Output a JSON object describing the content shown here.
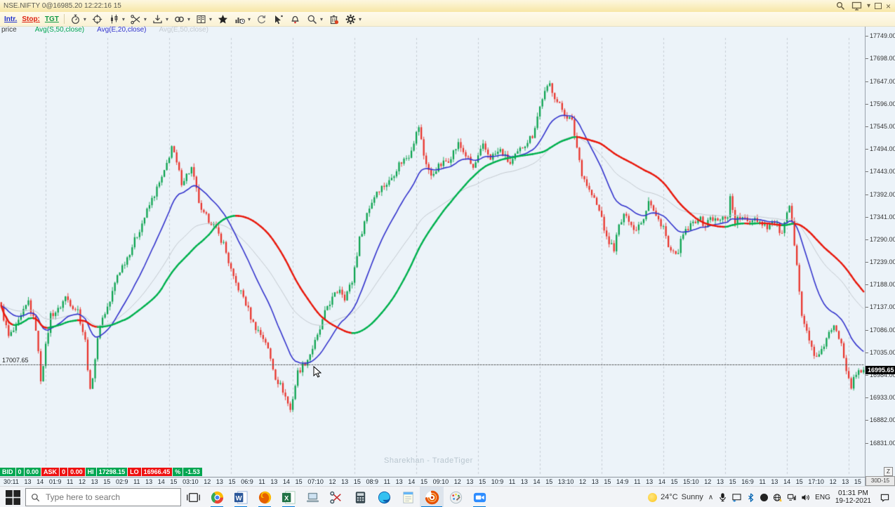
{
  "window": {
    "title": "NSE.NIFTY 0@16985.20 12:22:16 15"
  },
  "toolbar": {
    "text_buttons": [
      {
        "label": "Intr.",
        "color": "#2233cc"
      },
      {
        "label": "Stop:",
        "color": "#dd2211"
      },
      {
        "label": "TGT",
        "color": "#119944"
      }
    ],
    "icon_names": [
      "stopwatch-icon",
      "crosshair-icon",
      "candlestick-icon",
      "scissors-icon",
      "import-icon",
      "link-icon",
      "book-icon",
      "star-icon",
      "chart-clock-icon",
      "sync-icon",
      "pointer-icon",
      "bell-icon",
      "search-icon",
      "delete-icon",
      "settings-icon"
    ]
  },
  "legend": {
    "items": [
      {
        "label": "price",
        "color": "#3c3c3c"
      },
      {
        "label": "Avg(S,50,close)",
        "color": "#00a550"
      },
      {
        "label": "Avg(E,20,close)",
        "color": "#3333cc"
      },
      {
        "label": "Avg(E,50,close)",
        "color": "#c5cbd1"
      }
    ]
  },
  "chart_data": {
    "type": "candlestick",
    "instrument": "NSE.NIFTY",
    "timeframe_badge": "30D-15",
    "n_candles": 350,
    "y_axis": {
      "view_max": 17754,
      "view_min": 16756,
      "tick_step": 51,
      "ticks": [
        "17749.00",
        "17698.00",
        "17647.00",
        "17596.00",
        "17545.00",
        "17494.00",
        "17443.00",
        "17392.00",
        "17341.00",
        "17290.00",
        "17239.00",
        "17188.00",
        "17137.00",
        "17086.00",
        "17035.00",
        "16984.00",
        "16933.00",
        "16882.00",
        "16831.00"
      ]
    },
    "x_axis": {
      "labels": [
        "30:11",
        "13",
        "14",
        "01:9",
        "11",
        "12",
        "13",
        "15",
        "02:9",
        "11",
        "13",
        "14",
        "15",
        "03:10",
        "12",
        "13",
        "15",
        "06:9",
        "11",
        "13",
        "14",
        "15",
        "07:10",
        "12",
        "13",
        "15",
        "08:9",
        "11",
        "13",
        "14",
        "15",
        "09:10",
        "12",
        "13",
        "15",
        "10:9",
        "11",
        "13",
        "14",
        "15",
        "13:10",
        "12",
        "13",
        "15",
        "14:9",
        "11",
        "13",
        "14",
        "15",
        "15:10",
        "12",
        "13",
        "15",
        "16:9",
        "11",
        "13",
        "14",
        "15",
        "17:10",
        "12",
        "13",
        "15"
      ],
      "day_start_indices": [
        18,
        43,
        68,
        93,
        118,
        143,
        168,
        193,
        218,
        243,
        268,
        293,
        318,
        343
      ]
    },
    "close_waypoints": [
      [
        0,
        17135
      ],
      [
        3,
        17070
      ],
      [
        6,
        17090
      ],
      [
        11,
        17150
      ],
      [
        14,
        17090
      ],
      [
        16,
        16975
      ],
      [
        20,
        17120
      ],
      [
        23,
        17130
      ],
      [
        26,
        17160
      ],
      [
        29,
        17140
      ],
      [
        31,
        17130
      ],
      [
        34,
        17060
      ],
      [
        36,
        16945
      ],
      [
        40,
        17100
      ],
      [
        44,
        17150
      ],
      [
        47,
        17210
      ],
      [
        51,
        17250
      ],
      [
        55,
        17300
      ],
      [
        61,
        17380
      ],
      [
        66,
        17440
      ],
      [
        69,
        17500
      ],
      [
        73,
        17420
      ],
      [
        77,
        17450
      ],
      [
        81,
        17350
      ],
      [
        85,
        17330
      ],
      [
        90,
        17280
      ],
      [
        94,
        17200
      ],
      [
        98,
        17160
      ],
      [
        102,
        17100
      ],
      [
        107,
        17060
      ],
      [
        111,
        16980
      ],
      [
        114,
        16950
      ],
      [
        117,
        16905
      ],
      [
        120,
        16990
      ],
      [
        124,
        17020
      ],
      [
        128,
        17070
      ],
      [
        132,
        17140
      ],
      [
        137,
        17180
      ],
      [
        139,
        17160
      ],
      [
        142,
        17195
      ],
      [
        145,
        17290
      ],
      [
        148,
        17350
      ],
      [
        152,
        17400
      ],
      [
        157,
        17420
      ],
      [
        161,
        17460
      ],
      [
        165,
        17480
      ],
      [
        169,
        17545
      ],
      [
        171,
        17480
      ],
      [
        174,
        17430
      ],
      [
        176,
        17450
      ],
      [
        181,
        17470
      ],
      [
        185,
        17505
      ],
      [
        188,
        17480
      ],
      [
        191,
        17450
      ],
      [
        195,
        17500
      ],
      [
        198,
        17475
      ],
      [
        202,
        17490
      ],
      [
        206,
        17460
      ],
      [
        211,
        17500
      ],
      [
        215,
        17525
      ],
      [
        219,
        17610
      ],
      [
        222,
        17640
      ],
      [
        225,
        17600
      ],
      [
        228,
        17575
      ],
      [
        231,
        17555
      ],
      [
        235,
        17440
      ],
      [
        238,
        17400
      ],
      [
        240,
        17380
      ],
      [
        243,
        17340
      ],
      [
        245,
        17290
      ],
      [
        248,
        17270
      ],
      [
        250,
        17320
      ],
      [
        253,
        17350
      ],
      [
        256,
        17310
      ],
      [
        260,
        17340
      ],
      [
        262,
        17380
      ],
      [
        265,
        17340
      ],
      [
        268,
        17320
      ],
      [
        270,
        17270
      ],
      [
        273,
        17250
      ],
      [
        276,
        17300
      ],
      [
        279,
        17320
      ],
      [
        282,
        17340
      ],
      [
        285,
        17320
      ],
      [
        287,
        17340
      ],
      [
        290,
        17330
      ],
      [
        294,
        17345
      ],
      [
        295,
        17385
      ],
      [
        297,
        17330
      ],
      [
        299,
        17340
      ],
      [
        302,
        17330
      ],
      [
        305,
        17340
      ],
      [
        307,
        17330
      ],
      [
        310,
        17320
      ],
      [
        313,
        17330
      ],
      [
        316,
        17300
      ],
      [
        319,
        17365
      ],
      [
        322,
        17240
      ],
      [
        324,
        17120
      ],
      [
        327,
        17060
      ],
      [
        330,
        17020
      ],
      [
        332,
        17035
      ],
      [
        334,
        17070
      ],
      [
        337,
        17090
      ],
      [
        340,
        17060
      ],
      [
        342,
        17000
      ],
      [
        344,
        16960
      ],
      [
        346,
        16985
      ],
      [
        349,
        16996
      ]
    ],
    "noise_amp": 8,
    "wick_amp": 9,
    "colors": {
      "up": "#0aa24e",
      "down": "#e8322a",
      "grid": "#c6ccd5",
      "alert_line": "#555555"
    },
    "indicators": [
      {
        "name": "Avg(S,50,close)",
        "type": "sma",
        "period": 50,
        "color_up": "#00b14f",
        "color_down": "#e8190d",
        "width": 2.4
      },
      {
        "name": "Avg(E,20,close)",
        "type": "ema",
        "period": 20,
        "color": "#3333cc",
        "width": 1.6
      },
      {
        "name": "Avg(E,50,close)",
        "type": "ema",
        "period": 50,
        "color": "#c2c8ce",
        "width": 1
      }
    ],
    "alert_line": {
      "value": 17007.65,
      "label": "17007.65"
    },
    "last_price": {
      "value": 16995.65,
      "label": "16995.65"
    },
    "session": {
      "high": 17298.15,
      "low": 16966.45,
      "change_pct": -1.53
    }
  },
  "quote_strip": {
    "cells": [
      {
        "label": "BID",
        "bg": "#00a651"
      },
      {
        "label": "0",
        "bg": "#00a651"
      },
      {
        "label": "0.00",
        "bg": "#00a651"
      },
      {
        "label": "ASK",
        "bg": "#ee1111"
      },
      {
        "label": "0",
        "bg": "#ee1111"
      },
      {
        "label": "0.00",
        "bg": "#ee1111"
      },
      {
        "label": "HI",
        "bg": "#00a651"
      },
      {
        "label": "17298.15",
        "bg": "#00a651"
      },
      {
        "label": "LO",
        "bg": "#ee1111"
      },
      {
        "label": "16966.45",
        "bg": "#ee1111"
      },
      {
        "label": "%",
        "bg": "#00a651"
      },
      {
        "label": "-1.53",
        "bg": "#00a651"
      }
    ]
  },
  "range_controls": {
    "zoom_label": "Z",
    "range_label": "30D-15"
  },
  "watermark": "Sharekhan - TradeTiger",
  "taskbar": {
    "search_placeholder": "Type here to search",
    "apps": [
      "chrome",
      "word",
      "firefox",
      "excel",
      "laptop",
      "snipping-tool",
      "calculator",
      "edge",
      "notes",
      "tradetiger",
      "paint",
      "zoom"
    ],
    "running_apps": [
      "chrome",
      "word",
      "firefox",
      "excel",
      "tradetiger",
      "zoom"
    ],
    "active_app": "tradetiger",
    "tray": {
      "weather": {
        "temp": "24°C",
        "condition": "Sunny"
      },
      "language": "ENG",
      "time": "01:31 PM",
      "date": "19-12-2021"
    }
  }
}
